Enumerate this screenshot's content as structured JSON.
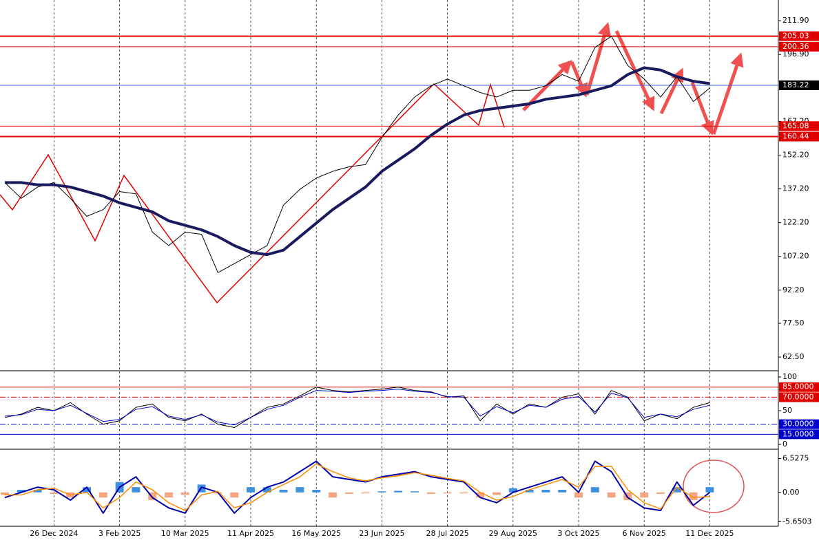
{
  "chart_data": [
    {
      "type": "line",
      "ylim": [
        56.7,
        221.1
      ],
      "yticks": [
        {
          "value": 211.9,
          "label": "211.90"
        },
        {
          "value": 196.9,
          "label": "196.90"
        },
        {
          "value": 167.2,
          "label": "167.20"
        },
        {
          "value": 152.2,
          "label": "152.20"
        },
        {
          "value": 137.2,
          "label": "137.20"
        },
        {
          "value": 122.2,
          "label": "122.20"
        },
        {
          "value": 107.2,
          "label": "107.20"
        },
        {
          "value": 92.2,
          "label": "92.20"
        },
        {
          "value": 77.5,
          "label": "77.50"
        },
        {
          "value": 62.5,
          "label": "62.50"
        }
      ],
      "categories": [
        null,
        null,
        null,
        "26 Dec 2024",
        null,
        null,
        null,
        "3 Feb 2025",
        null,
        null,
        null,
        "10 Mar 2025",
        null,
        null,
        null,
        "11 Apr 2025",
        null,
        null,
        null,
        "16 May 2025",
        null,
        null,
        null,
        "23 Jun 2025",
        null,
        null,
        null,
        "28 Jul 2025",
        null,
        null,
        null,
        "29 Aug 2025",
        null,
        null,
        null,
        "3 Oct 2025",
        null,
        null,
        null,
        "6 Nov 2025",
        null,
        null,
        null,
        "11 Dec 2025"
      ],
      "series": [
        {
          "color": "#000000",
          "width": 1,
          "values": [
            140,
            133,
            138,
            140,
            133,
            125,
            128,
            136,
            135,
            118,
            112,
            118,
            117,
            100,
            104,
            108,
            112,
            130,
            137,
            142,
            145,
            147,
            148,
            160,
            170,
            178,
            183,
            186,
            183,
            180,
            178,
            181,
            181,
            183,
            188,
            185,
            200,
            205,
            192,
            186,
            178,
            187,
            176,
            182
          ]
        },
        {
          "color": "#1a1a5e",
          "width": 4,
          "values": [
            140,
            140,
            139,
            139,
            138,
            136,
            134,
            131,
            129,
            127,
            123,
            121,
            119,
            116,
            112,
            109,
            108,
            110,
            116,
            122,
            128,
            133,
            138,
            145,
            150,
            155,
            161,
            166,
            170,
            172,
            173,
            174,
            175,
            177,
            178,
            179,
            181,
            183,
            188,
            191,
            190,
            187,
            185,
            184
          ]
        }
      ],
      "levels": [
        {
          "value": 205.03,
          "label": "205.03",
          "color": "#e00000",
          "width": 2
        },
        {
          "value": 200.36,
          "label": "200.36",
          "color": "#e00000",
          "width": 1
        },
        {
          "value": 183.22,
          "label": "183.22",
          "color": "#4060d0",
          "width": 1,
          "box": "#000000"
        },
        {
          "value": 165.08,
          "label": "165.08",
          "color": "#e00000",
          "width": 1
        },
        {
          "value": 160.44,
          "label": "160.44",
          "color": "#e00000",
          "width": 2
        }
      ]
    },
    {
      "type": "line",
      "ylim": [
        -6.1,
        108.2
      ],
      "yticks": [
        100,
        50,
        0
      ],
      "series": [
        {
          "color": "#000000",
          "width": 1,
          "values": [
            40,
            45,
            55,
            50,
            62,
            45,
            30,
            35,
            55,
            60,
            40,
            35,
            45,
            30,
            25,
            40,
            55,
            60,
            72,
            85,
            80,
            78,
            80,
            82,
            85,
            80,
            78,
            70,
            72,
            35,
            60,
            45,
            60,
            55,
            70,
            75,
            45,
            80,
            70,
            35,
            45,
            38,
            55,
            62
          ]
        },
        {
          "color": "#0000cc",
          "width": 1,
          "values": [
            42,
            44,
            52,
            50,
            58,
            46,
            34,
            37,
            52,
            56,
            42,
            37,
            44,
            33,
            29,
            40,
            52,
            58,
            70,
            80,
            79,
            77,
            79,
            80,
            82,
            79,
            77,
            71,
            70,
            42,
            56,
            47,
            58,
            55,
            67,
            71,
            48,
            76,
            69,
            40,
            45,
            41,
            52,
            58
          ]
        }
      ],
      "levels": [
        {
          "value": 85,
          "label": "85.0000",
          "color": "#e00000",
          "dash": "none"
        },
        {
          "value": 70,
          "label": "70.0000",
          "color": "#e00000",
          "dash": "8,3,2,3"
        },
        {
          "value": 30,
          "label": "30.0000",
          "color": "#0000cc",
          "dash": "8,3,2,3"
        },
        {
          "value": 15,
          "label": "15.0000",
          "color": "#0000cc",
          "dash": "none"
        }
      ]
    },
    {
      "type": "macd",
      "ylim": [
        -6.53,
        8.19
      ],
      "yticks": [
        6.5275,
        {
          "value": 0,
          "label": "0.00"
        },
        -5.6503
      ],
      "histogram": {
        "pos_color": "#3d8fe0",
        "neg_color": "#f4a582",
        "values": [
          -0.5,
          0.5,
          0.5,
          -0.3,
          -1,
          1,
          -1,
          2,
          1,
          -1.5,
          -1,
          -0.5,
          1.5,
          -0.2,
          -1,
          1,
          1,
          0.5,
          1,
          0.5,
          -1,
          -0.3,
          -0.2,
          0.2,
          0.3,
          0.2,
          -0.3,
          -0.2,
          -0.2,
          -1,
          -0.5,
          0.8,
          0.5,
          0.5,
          0.5,
          -1,
          1,
          -1,
          -1.5,
          -1,
          -0.3,
          1,
          -1.5,
          1
        ]
      },
      "series": [
        {
          "color": "#0000aa",
          "width": 2,
          "values": [
            -1,
            0,
            1,
            0.5,
            -1.5,
            1,
            -4,
            1,
            3,
            -1,
            -3,
            -4,
            1,
            0,
            -4,
            -1,
            1,
            2,
            4,
            6,
            3,
            2.5,
            2,
            3,
            3.5,
            4,
            3,
            2.5,
            2,
            -1,
            -2,
            0,
            1,
            2,
            3,
            0,
            6,
            4,
            -1,
            -3,
            -3.5,
            2,
            -2.5,
            0
          ]
        },
        {
          "color": "#ff8c00",
          "width": 1.5,
          "values": [
            -0.5,
            -0.5,
            0.5,
            0.8,
            -0.5,
            0,
            -3,
            -1,
            2,
            0.5,
            -2,
            -3.5,
            -0.5,
            0.2,
            -3,
            -2,
            0,
            1.5,
            3,
            5.5,
            4,
            2.8,
            2.2,
            2.8,
            3.2,
            3.8,
            3.3,
            2.7,
            2.2,
            0,
            -1.5,
            -0.8,
            0.5,
            1.5,
            2.5,
            1,
            5,
            5,
            0.5,
            -2,
            -3.2,
            1,
            -1,
            -0.8
          ]
        }
      ]
    }
  ]
}
